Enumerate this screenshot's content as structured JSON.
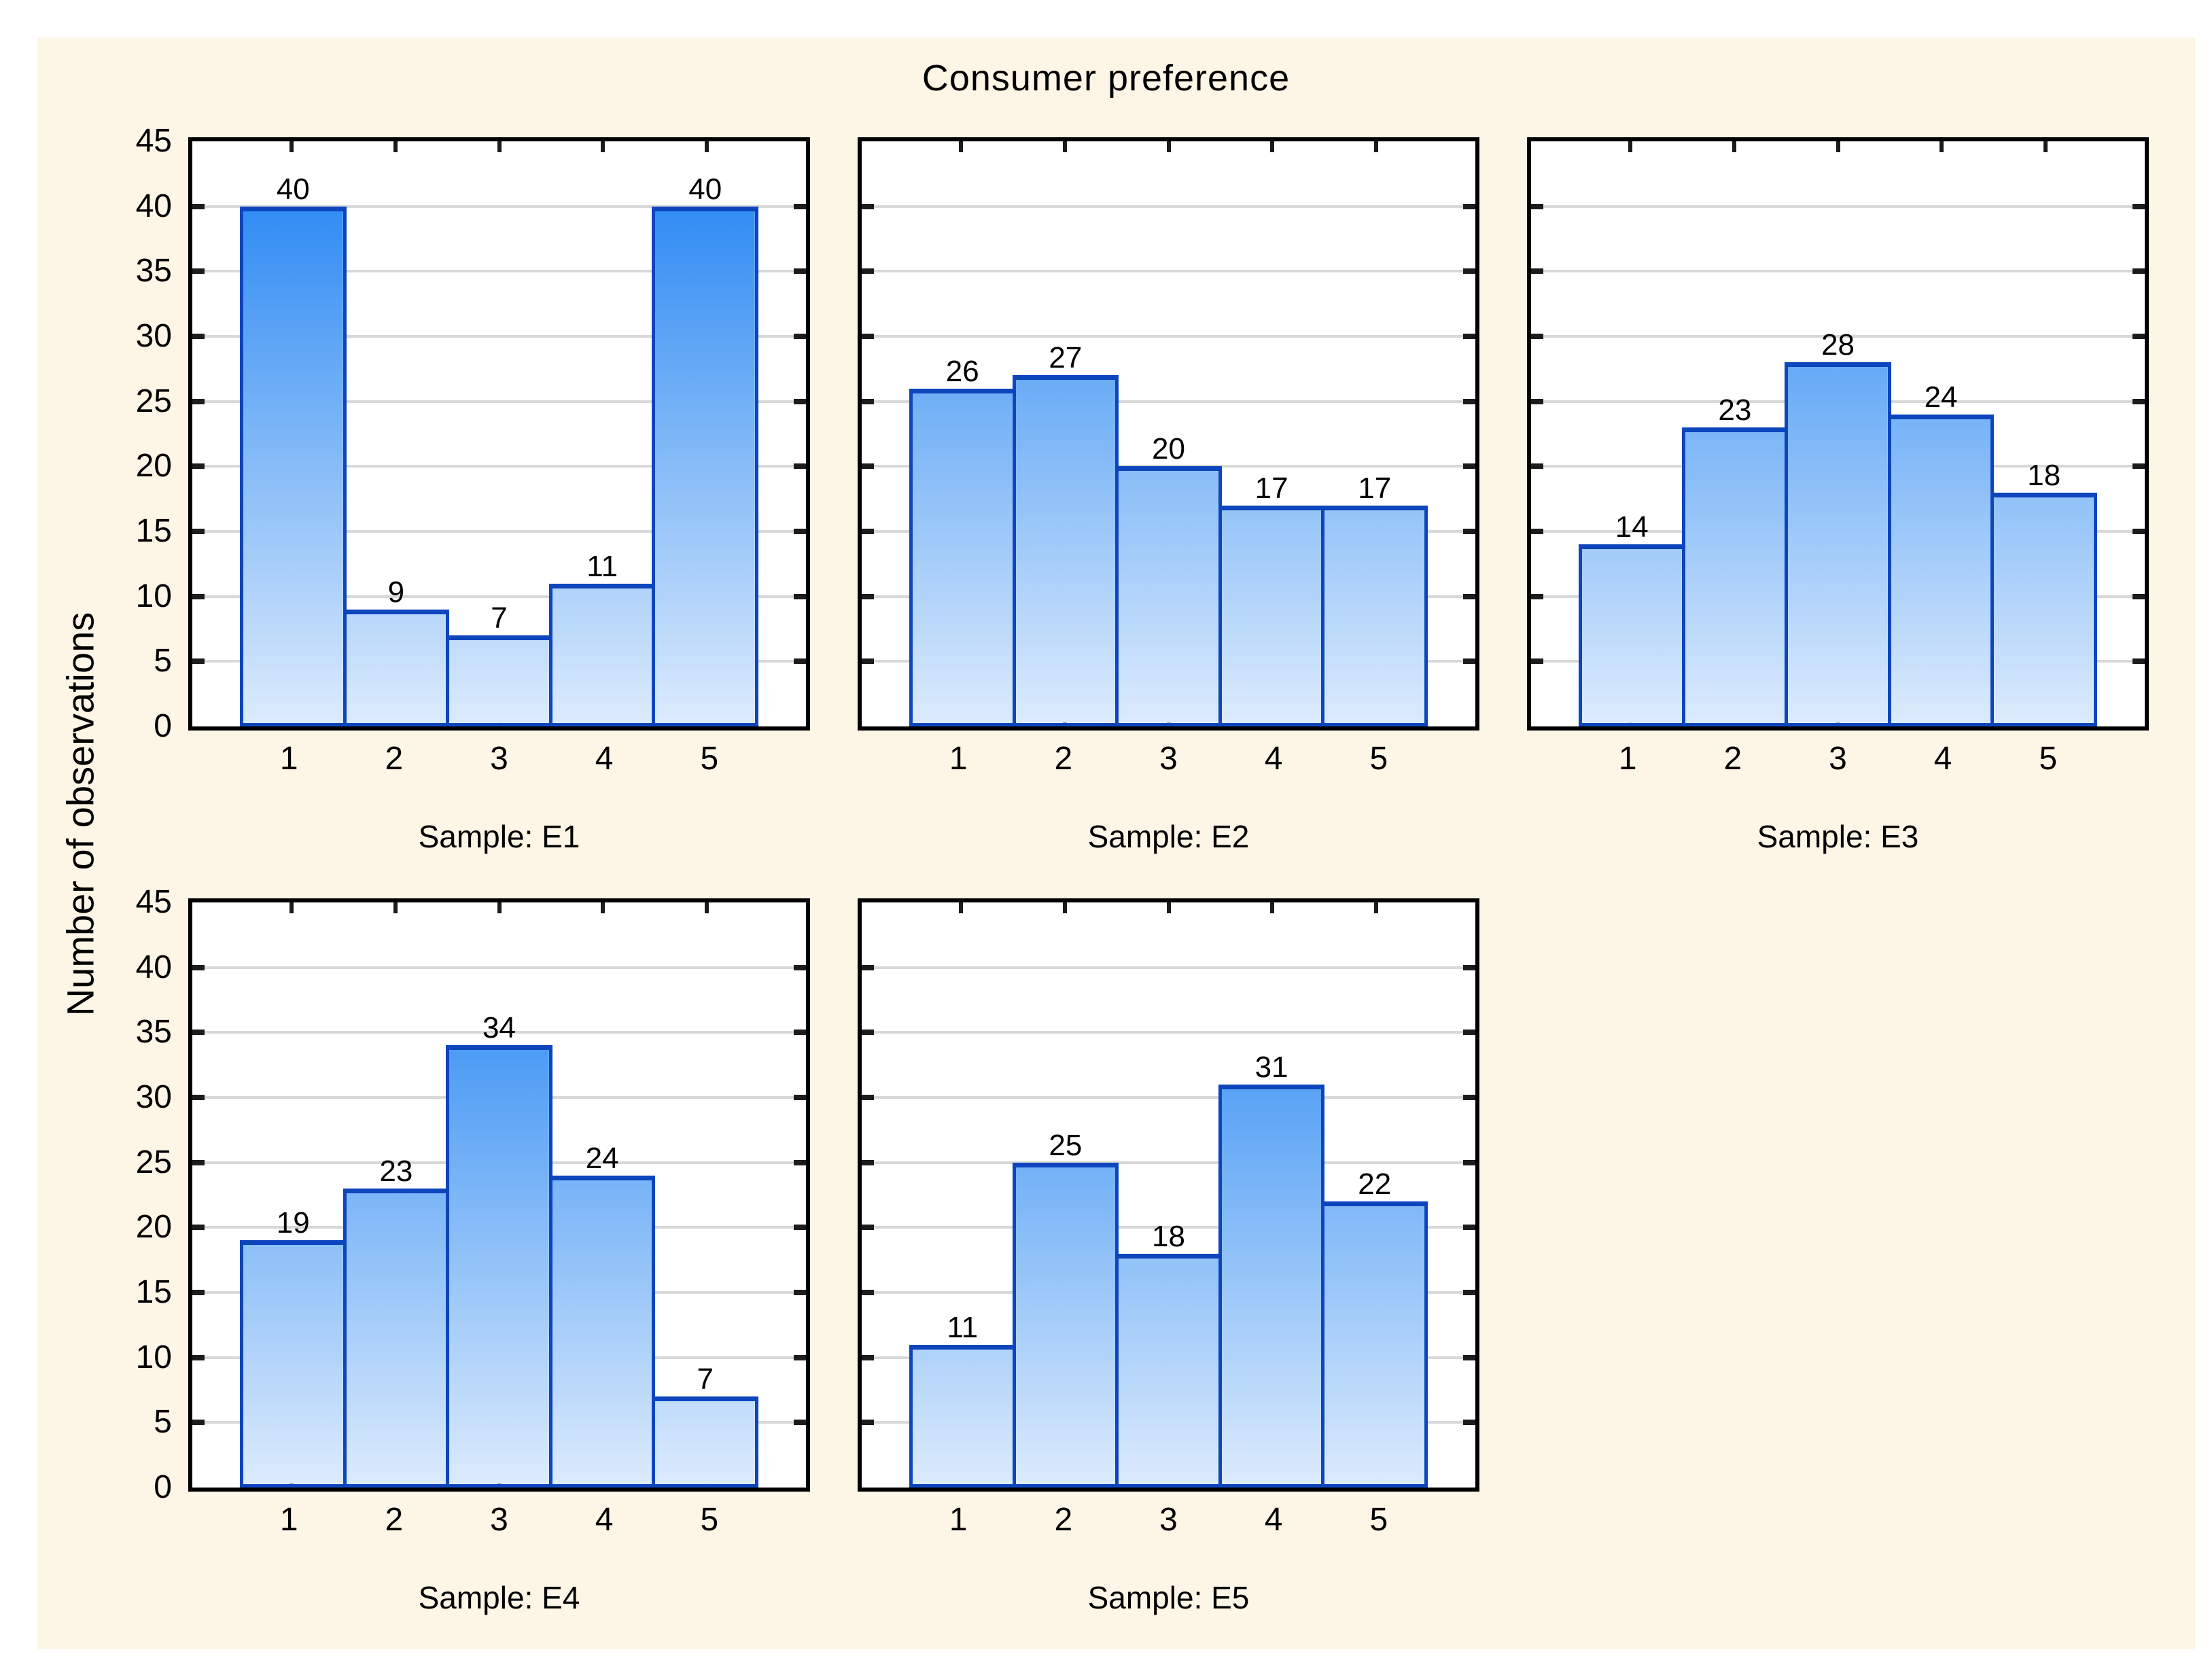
{
  "title": "Consumer preference",
  "y_axis_title": "Number of observations",
  "x_axis_ticks": [
    "1",
    "2",
    "3",
    "4",
    "5"
  ],
  "y_axis_ticks": [
    "0",
    "5",
    "10",
    "15",
    "20",
    "25",
    "30",
    "35",
    "40",
    "45"
  ],
  "colors": {
    "panel_background": "#fdf5e6",
    "plot_background": "#ffffff",
    "frame": "#000000",
    "gridline": "#d8d8d8",
    "bar_border": "#0d45bd",
    "bar_gradient_top": "#1a80f2",
    "bar_gradient_bottom": "#dcebfc",
    "text": "#000000"
  },
  "subplots": [
    {
      "label": "Sample: E1",
      "values": [
        40,
        9,
        7,
        11,
        40
      ],
      "show_y_labels": true
    },
    {
      "label": "Sample: E2",
      "values": [
        26,
        27,
        20,
        17,
        17
      ],
      "show_y_labels": false
    },
    {
      "label": "Sample: E3",
      "values": [
        14,
        23,
        28,
        24,
        18
      ],
      "show_y_labels": false
    },
    {
      "label": "Sample: E4",
      "values": [
        19,
        23,
        34,
        24,
        7
      ],
      "show_y_labels": true
    },
    {
      "label": "Sample: E5",
      "values": [
        11,
        25,
        18,
        31,
        22
      ],
      "show_y_labels": false
    }
  ],
  "chart_data": {
    "type": "bar",
    "title": "Consumer preference",
    "xlabel": "",
    "ylabel": "Number of observations",
    "categories": [
      1,
      2,
      3,
      4,
      5
    ],
    "series": [
      {
        "name": "Sample: E1",
        "values": [
          40,
          9,
          7,
          11,
          40
        ]
      },
      {
        "name": "Sample: E2",
        "values": [
          26,
          27,
          20,
          17,
          17
        ]
      },
      {
        "name": "Sample: E3",
        "values": [
          14,
          23,
          28,
          24,
          18
        ]
      },
      {
        "name": "Sample: E4",
        "values": [
          19,
          23,
          34,
          24,
          7
        ]
      },
      {
        "name": "Sample: E5",
        "values": [
          11,
          25,
          18,
          31,
          22
        ]
      }
    ],
    "ylim": [
      0,
      45
    ],
    "ytick_step": 5,
    "grid": true,
    "bar_labels": true,
    "legend_position": "none",
    "layout": "2 rows of subplots: E1 E2 E3 on top row, E4 E5 on bottom row; histogram-style adjacent bars"
  }
}
